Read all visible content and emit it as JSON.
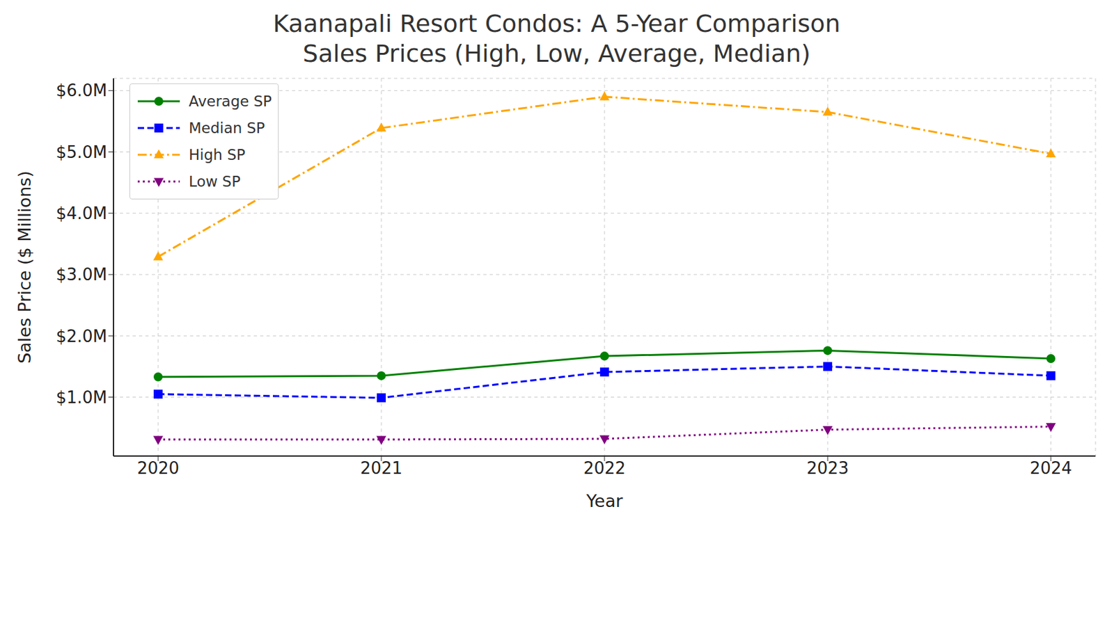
{
  "chart_data": {
    "type": "line",
    "title": "Kaanapali Resort Condos: A 5-Year Comparison\nSales Prices (High, Low, Average, Median)",
    "x_label": "Year",
    "y_label": "Sales Price ($ Millions)",
    "categories": [
      "2020",
      "2021",
      "2022",
      "2023",
      "2024"
    ],
    "series": [
      {
        "name": "Average SP",
        "color": "#008000",
        "marker": "circle",
        "line_style": "solid",
        "values": [
          1.33,
          1.35,
          1.67,
          1.76,
          1.63
        ]
      },
      {
        "name": "Median SP",
        "color": "#0000ff",
        "marker": "square",
        "line_style": "dashed",
        "values": [
          1.05,
          0.99,
          1.41,
          1.5,
          1.35
        ]
      },
      {
        "name": "High SP",
        "color": "#ffa500",
        "marker": "triangle-up",
        "line_style": "dashdot",
        "values": [
          3.29,
          5.39,
          5.9,
          5.65,
          4.97
        ]
      },
      {
        "name": "Low SP",
        "color": "#800080",
        "marker": "triangle-down",
        "line_style": "dotted",
        "values": [
          0.31,
          0.31,
          0.32,
          0.47,
          0.52
        ]
      }
    ],
    "ylim": [
      0.04,
      6.2
    ],
    "yticks": [
      {
        "value": 1,
        "label": "$1.0M"
      },
      {
        "value": 2,
        "label": "$2.0M"
      },
      {
        "value": 3,
        "label": "$3.0M"
      },
      {
        "value": 4,
        "label": "$4.0M"
      },
      {
        "value": 5,
        "label": "$5.0M"
      },
      {
        "value": 6,
        "label": "$6.0M"
      }
    ],
    "grid": true,
    "legend": "upper left"
  }
}
